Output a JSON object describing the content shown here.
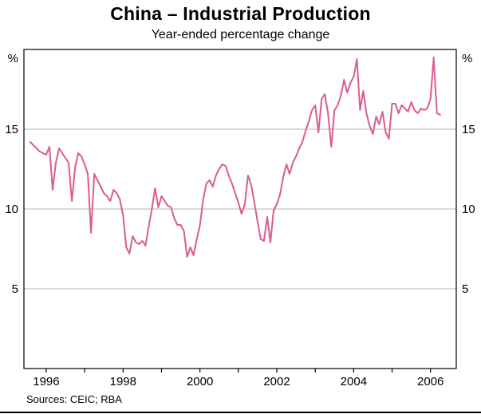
{
  "header": {
    "title": "China – Industrial Production",
    "subtitle": "Year-ended percentage change"
  },
  "footer": {
    "sources": "Sources: CEIC; RBA"
  },
  "chart_data": {
    "type": "line",
    "title": "China – Industrial Production",
    "subtitle": "Year-ended percentage change",
    "unit": "%",
    "xlabel": "",
    "ylabel": "%",
    "xlim": [
      1995.42,
      2006.67
    ],
    "ylim": [
      0,
      20
    ],
    "gridlines": [
      5,
      10,
      15
    ],
    "grid_on": true,
    "legend": "none",
    "x_ticks": [
      1996,
      1997,
      1998,
      1999,
      2000,
      2001,
      2002,
      2003,
      2004,
      2005,
      2006
    ],
    "x_labels": [
      1996,
      1998,
      2000,
      2002,
      2004,
      2006
    ],
    "line_color": "#db5c92",
    "grid_color": "#b3b3b3",
    "axis_color": "#000000",
    "x_start": 1995.5833,
    "points_per_year": 12,
    "series": [
      {
        "name": "Industrial production year-ended percentage change",
        "values": [
          14.2,
          14.0,
          13.8,
          13.6,
          13.5,
          13.4,
          13.9,
          11.2,
          12.9,
          13.8,
          13.5,
          13.2,
          12.9,
          10.5,
          12.6,
          13.5,
          13.3,
          12.8,
          12.2,
          8.5,
          12.2,
          11.8,
          11.4,
          11.0,
          10.8,
          10.5,
          11.2,
          11.0,
          10.6,
          9.6,
          7.6,
          7.2,
          8.3,
          7.9,
          7.8,
          8.0,
          7.7,
          8.9,
          10.0,
          11.3,
          10.1,
          10.8,
          10.5,
          10.2,
          10.1,
          9.4,
          9.0,
          9.0,
          8.6,
          7.0,
          7.6,
          7.1,
          8.1,
          9.0,
          10.6,
          11.6,
          11.8,
          11.4,
          12.1,
          12.5,
          12.8,
          12.7,
          12.1,
          11.6,
          11.0,
          10.4,
          9.7,
          10.3,
          12.1,
          11.5,
          10.4,
          9.2,
          8.1,
          8.0,
          9.5,
          7.9,
          9.9,
          10.3,
          10.9,
          12.0,
          12.8,
          12.2,
          12.9,
          13.3,
          13.8,
          14.2,
          14.9,
          15.5,
          16.2,
          16.5,
          14.8,
          16.9,
          17.2,
          16.0,
          13.9,
          16.2,
          16.5,
          17.1,
          18.1,
          17.3,
          17.9,
          18.3,
          19.4,
          16.2,
          17.4,
          16.0,
          15.2,
          14.7,
          15.8,
          15.3,
          16.1,
          14.8,
          14.4,
          16.6,
          16.6,
          16.0,
          16.5,
          16.3,
          16.1,
          16.7,
          16.2,
          16.0,
          16.3,
          16.2,
          16.3,
          16.9,
          19.5,
          16.0,
          15.9
        ]
      }
    ]
  }
}
